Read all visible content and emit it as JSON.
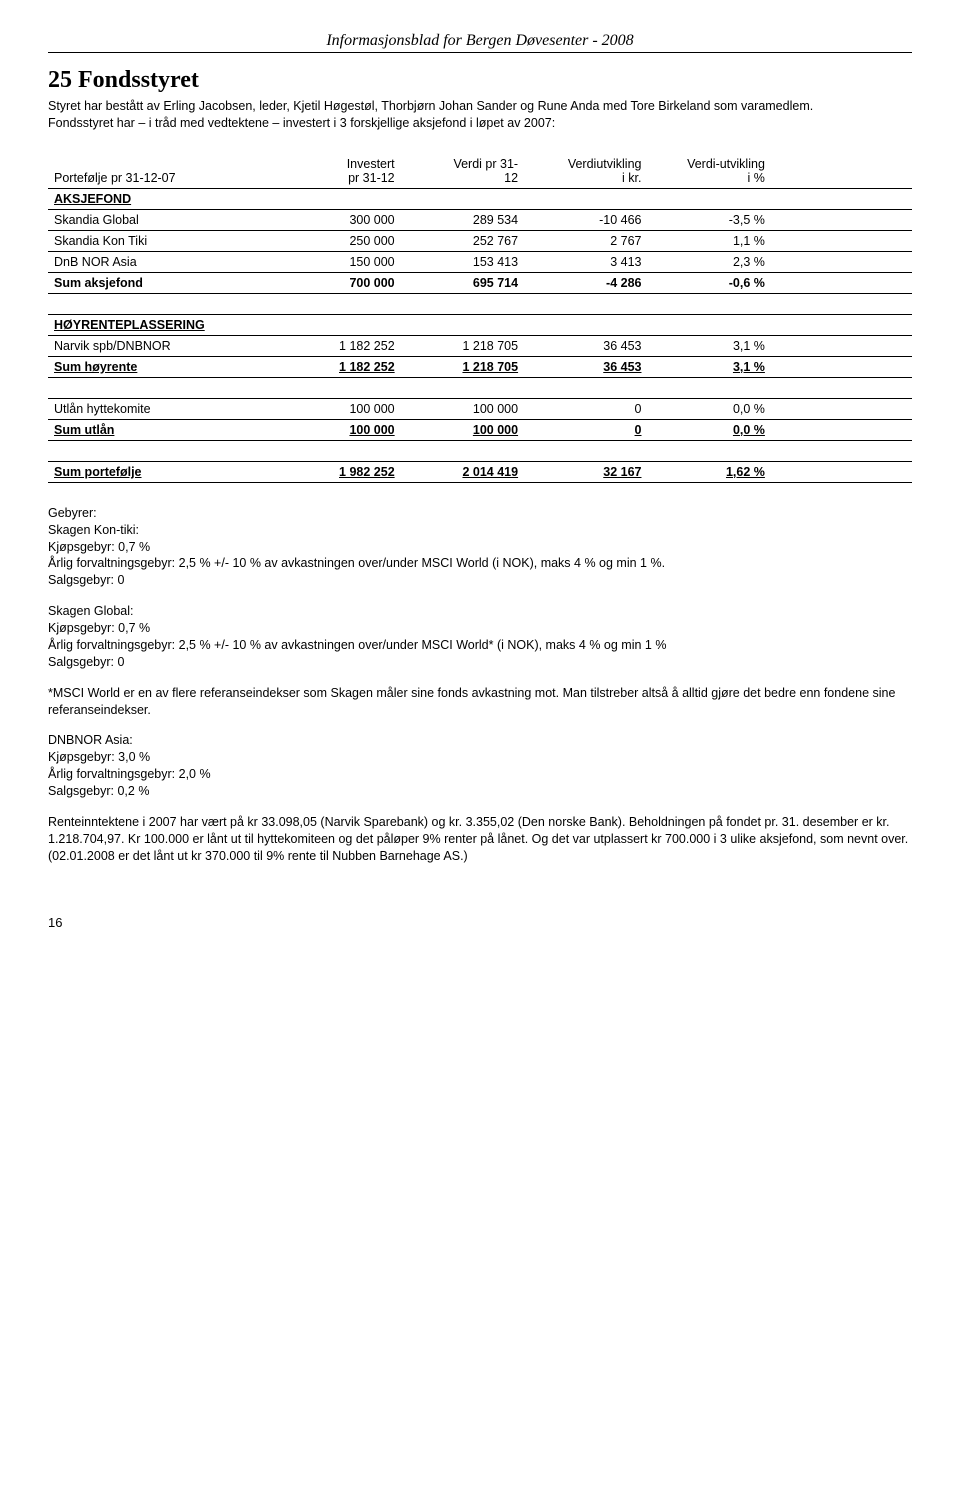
{
  "header": "Informasjonsblad for Bergen Døvesenter - 2008",
  "title": "25 Fondsstyret",
  "intro_p1": "Styret har bestått av Erling Jacobsen, leder, Kjetil Høgestøl, Thorbjørn Johan Sander og Rune Anda med Tore Birkeland som varamedlem.",
  "intro_p2": "Fondsstyret har – i tråd med vedtektene – investert i 3 forskjellige aksjefond i løpet av 2007:",
  "table": {
    "head": {
      "c0": "Portefølje pr 31-12-07",
      "c1_l1": "Investert",
      "c1_l2": "pr 31-12",
      "c2_l1": "Verdi pr 31-",
      "c2_l2": "12",
      "c3_l1": "Verdiutvikling",
      "c3_l2": "i kr.",
      "c4_l1": "Verdi-utvikling",
      "c4_l2": "i %"
    },
    "aksjefond_label": "AKSJEFOND",
    "aksjefond": [
      {
        "name": "Skandia Global",
        "c1": "300 000",
        "c2": "289 534",
        "c3": "-10 466",
        "c4": "-3,5 %"
      },
      {
        "name": "Skandia Kon Tiki",
        "c1": "250 000",
        "c2": "252 767",
        "c3": "2 767",
        "c4": "1,1 %"
      },
      {
        "name": "DnB NOR Asia",
        "c1": "150 000",
        "c2": "153 413",
        "c3": "3 413",
        "c4": "2,3 %"
      }
    ],
    "sum_aksjefond": {
      "name": "Sum  aksjefond",
      "c1": "700 000",
      "c2": "695 714",
      "c3": "-4 286",
      "c4": "-0,6 %"
    },
    "hoyrente_label": "HØYRENTEPLASSERING",
    "hoyrente": [
      {
        "name": "Narvik spb/DNBNOR",
        "c1": "1 182 252",
        "c2": "1 218 705",
        "c3": "36 453",
        "c4": "3,1 %"
      }
    ],
    "sum_hoyrente": {
      "name": "Sum høyrente",
      "c1": "1 182 252",
      "c2": "1 218 705",
      "c3": "36 453",
      "c4": "3,1 %"
    },
    "utlan": [
      {
        "name": "Utlån hyttekomite",
        "c1": "100 000",
        "c2": "100 000",
        "c3": "0",
        "c4": "0,0 %"
      }
    ],
    "sum_utlan": {
      "name": "Sum utlån",
      "c1": "100 000",
      "c2": "100 000",
      "c3": "0",
      "c4": "0,0 %"
    },
    "sum_port": {
      "name": "Sum portefølje",
      "c1": "1 982 252",
      "c2": "2 014 419",
      "c3": "32 167",
      "c4": "1,62 %"
    }
  },
  "fees": {
    "gebyrer": "Gebyrer:",
    "kontiki_h": "Skagen Kon-tiki:",
    "kontiki_l1": "Kjøpsgebyr: 0,7 %",
    "kontiki_l2": "Årlig forvaltningsgebyr: 2,5 % +/- 10 % av avkastningen over/under MSCI World (i NOK), maks 4 % og min 1 %.",
    "kontiki_l3": "Salgsgebyr: 0",
    "global_h": "Skagen Global:",
    "global_l1": "Kjøpsgebyr: 0,7 %",
    "global_l2": "Årlig forvaltningsgebyr: 2,5 % +/- 10 % av avkastningen over/under MSCI World* (i NOK), maks 4 % og min 1 %",
    "global_l3": "Salgsgebyr: 0",
    "msci_note": "*MSCI World er en av flere referanseindekser som Skagen måler sine fonds avkastning mot. Man tilstreber altså å alltid gjøre det bedre enn fondene sine referanseindekser.",
    "dnb_h": "DNBNOR Asia:",
    "dnb_l1": "Kjøpsgebyr: 3,0 %",
    "dnb_l2": "Årlig forvaltningsgebyr: 2,0 %",
    "dnb_l3": "Salgsgebyr: 0,2 %",
    "rente": "Renteinntektene i 2007 har vært på kr 33.098,05 (Narvik Sparebank) og kr. 3.355,02 (Den norske Bank). Beholdningen på fondet pr. 31. desember er kr. 1.218.704,97. Kr 100.000 er lånt ut til hyttekomiteen og det påløper 9% renter på lånet. Og det var utplassert kr 700.000 i 3 ulike aksjefond, som nevnt over.",
    "rente2": "(02.01.2008 er det lånt ut kr 370.000 til 9% rente til Nubben Barnehage AS.)"
  },
  "page_num": "16"
}
